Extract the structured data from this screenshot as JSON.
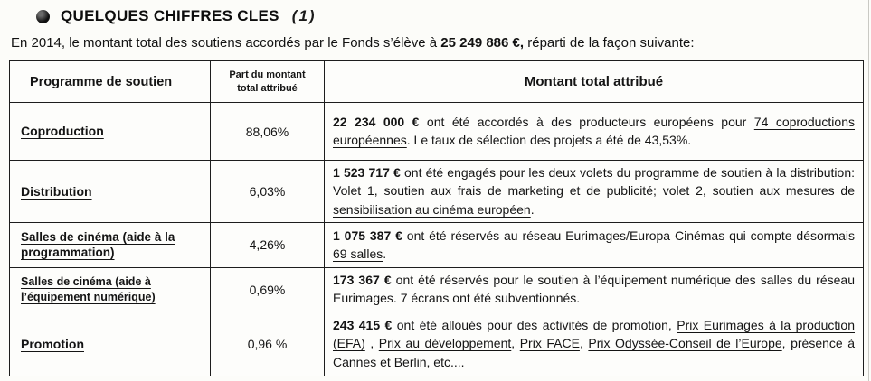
{
  "header": {
    "title": "QUELQUES CHIFFRES CLES",
    "annotation": "(1)",
    "icon": "bullet-globe-icon"
  },
  "intro": {
    "segments": [
      {
        "text": "En 2014, le montant total des soutiens accordés par le Fonds s’élève à "
      },
      {
        "text": "25 249 886 €,",
        "bold": true
      },
      {
        "text": " réparti de la façon suivante:"
      }
    ]
  },
  "table": {
    "columns": [
      "Programme de soutien",
      "Part du montant total attribué",
      "Montant total attribué"
    ],
    "rows": [
      {
        "programme": "Coproduction",
        "part": "88,06%",
        "montant_segments": [
          {
            "text": "22 234 000 €",
            "bold": true
          },
          {
            "text": " ont été accordés à des producteurs européens pour "
          },
          {
            "text": "74 coproductions européennes",
            "underline": true
          },
          {
            "text": ". Le taux de sélection des projets a été de 43,53%."
          }
        ]
      },
      {
        "programme": "Distribution",
        "part": "6,03%",
        "montant_segments": [
          {
            "text": "1 523 717 €",
            "bold": true
          },
          {
            "text": " ont été engagés pour les deux volets du programme de soutien à la distribution: Volet 1, soutien aux frais de marketing et de publicité;  volet 2, soutien aux mesures de "
          },
          {
            "text": "sensibilisation au cinéma européen",
            "underline": true
          },
          {
            "text": "."
          }
        ]
      },
      {
        "programme": "Salles de cinéma (aide à la programmation)",
        "part": "4,26%",
        "montant_segments": [
          {
            "text": "1 075 387 €",
            "bold": true
          },
          {
            "text": " ont été réservés au  réseau Eurimages/Europa Cinémas qui compte désormais "
          },
          {
            "text": "69 salles",
            "underline": true
          },
          {
            "text": "."
          }
        ]
      },
      {
        "programme": "Salles de cinéma (aide à l’équipement numérique)",
        "part": "0,69%",
        "montant_segments": [
          {
            "text": "173 367 €",
            "bold": true
          },
          {
            "text": " ont été réservés pour le soutien à l’équipement numérique des salles du réseau Eurimages. 7 écrans ont été subventionnés."
          }
        ]
      },
      {
        "programme": "Promotion",
        "part": "0,96 %",
        "montant_segments": [
          {
            "text": "243 415 €",
            "bold": true
          },
          {
            "text": " ont été alloués pour des activités de promotion, "
          },
          {
            "text": "Prix Eurimages à la production (EFA)",
            "underline": true
          },
          {
            "text": " , "
          },
          {
            "text": "Prix  au développement",
            "underline": true
          },
          {
            "text": ", "
          },
          {
            "text": "Prix FACE",
            "underline": true
          },
          {
            "text": ", "
          },
          {
            "text": "Prix Odyssée-Conseil de l’Europe",
            "underline": true
          },
          {
            "text": ", présence à Cannes et Berlin, etc...."
          }
        ]
      }
    ]
  }
}
